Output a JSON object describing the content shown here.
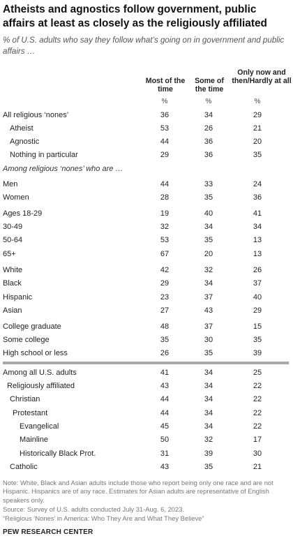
{
  "title": "Atheists and agnostics follow government, public affairs at least as closely as the religiously affiliated",
  "subtitle": "% of U.S. adults who say they follow what’s going on in government and public affairs …",
  "section_label": "Among religious ‘nones’ who are …",
  "note": "Note: White, Black and Asian adults include those who report being only one race and are not Hispanic. Hispanics are of any race. Estimates for Asian adults are representative of English speakers only.",
  "source": "Source: Survey of U.S. adults conducted July 31-Aug. 6, 2023.",
  "report": "“Religious ‘Nones’ in America: Who They Are and What They Believe”",
  "brand": "PEW RESEARCH CENTER",
  "chart_data": {
    "type": "table",
    "columns": [
      "Most of the time",
      "Some of the time",
      "Only now and then/Hardly at all"
    ],
    "unit": "%",
    "rows": [
      {
        "label": "All religious ‘nones’",
        "values": [
          36,
          34,
          29
        ]
      },
      {
        "label": "Atheist",
        "values": [
          53,
          26,
          21
        ]
      },
      {
        "label": "Agnostic",
        "values": [
          44,
          36,
          20
        ]
      },
      {
        "label": "Nothing in particular",
        "values": [
          29,
          36,
          35
        ]
      },
      {
        "label": "Men",
        "values": [
          44,
          33,
          24
        ]
      },
      {
        "label": "Women",
        "values": [
          28,
          35,
          36
        ]
      },
      {
        "label": "Ages 18-29",
        "values": [
          19,
          40,
          41
        ]
      },
      {
        "label": "30-49",
        "values": [
          32,
          34,
          34
        ]
      },
      {
        "label": "50-64",
        "values": [
          53,
          35,
          13
        ]
      },
      {
        "label": "65+",
        "values": [
          67,
          20,
          13
        ]
      },
      {
        "label": "White",
        "values": [
          42,
          32,
          26
        ]
      },
      {
        "label": "Black",
        "values": [
          29,
          34,
          37
        ]
      },
      {
        "label": "Hispanic",
        "values": [
          23,
          37,
          40
        ]
      },
      {
        "label": "Asian",
        "values": [
          27,
          43,
          29
        ]
      },
      {
        "label": "College graduate",
        "values": [
          48,
          37,
          15
        ]
      },
      {
        "label": "Some college",
        "values": [
          35,
          30,
          35
        ]
      },
      {
        "label": "High school or less",
        "values": [
          26,
          35,
          39
        ]
      },
      {
        "label": "Among all U.S. adults",
        "values": [
          41,
          34,
          25
        ]
      },
      {
        "label": "Religiously affiliated",
        "values": [
          43,
          34,
          22
        ]
      },
      {
        "label": "Christian",
        "values": [
          44,
          34,
          22
        ]
      },
      {
        "label": "Protestant",
        "values": [
          44,
          34,
          22
        ]
      },
      {
        "label": "Evangelical",
        "values": [
          45,
          34,
          22
        ]
      },
      {
        "label": "Mainline",
        "values": [
          50,
          32,
          17
        ]
      },
      {
        "label": "Historically Black Prot.",
        "values": [
          31,
          39,
          30
        ]
      },
      {
        "label": "Catholic",
        "values": [
          43,
          35,
          21
        ]
      }
    ]
  }
}
